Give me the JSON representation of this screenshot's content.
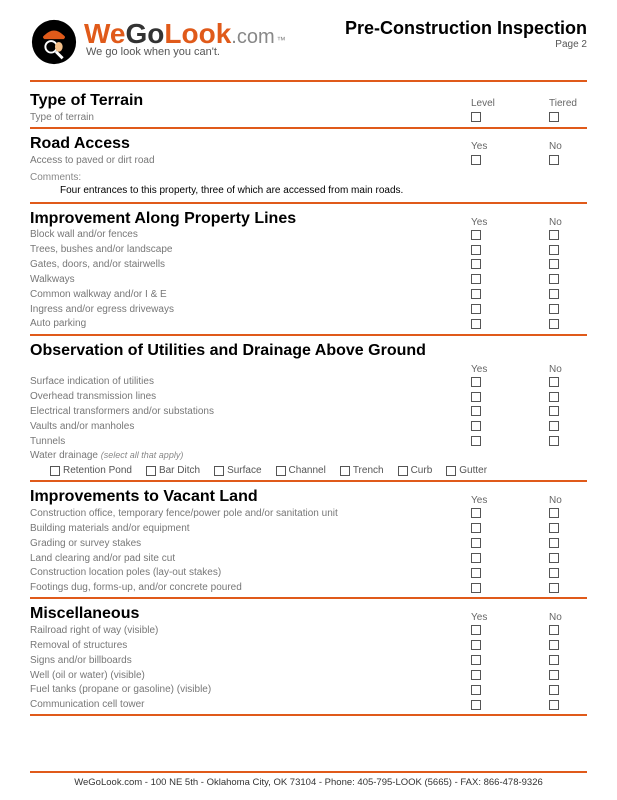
{
  "brand": {
    "we": "We",
    "go": "Go",
    "look": "Look",
    "dom": ".com",
    "tm": "™",
    "tagline": "We go look when you can't."
  },
  "brand_colors": {
    "we": "#e05a1a",
    "go": "#333333",
    "look": "#e05a1a",
    "dom": "#888888"
  },
  "doc": {
    "title": "Pre-Construction Inspection",
    "page": "Page 2"
  },
  "s1": {
    "title": "Type of Terrain",
    "sub": "Type of terrain",
    "h1": "Level",
    "h2": "Tiered"
  },
  "s2": {
    "title": "Road Access",
    "sub": "Access to paved or dirt road",
    "h1": "Yes",
    "h2": "No",
    "comments_lbl": "Comments:",
    "comments": "Four entrances to this property, three of which are accessed from main roads."
  },
  "s3": {
    "title": "Improvement Along Property Lines",
    "h1": "Yes",
    "h2": "No",
    "items": [
      "Block wall and/or fences",
      "Trees, bushes and/or landscape",
      "Gates, doors, and/or stairwells",
      "Walkways",
      "Common walkway and/or I & E",
      "Ingress and/or egress driveways",
      "Auto parking"
    ]
  },
  "s4": {
    "title": "Observation of Utilities and Drainage Above Ground",
    "h1": "Yes",
    "h2": "No",
    "items": [
      "Surface indication of utilities",
      "Overhead transmission lines",
      "Electrical transformers and/or substations",
      "Vaults and/or manholes",
      "Tunnels"
    ],
    "drain_label": "Water drainage ",
    "drain_hint": "(select all that apply)",
    "opts": [
      "Retention Pond",
      "Bar Ditch",
      "Surface",
      "Channel",
      "Trench",
      "Curb",
      "Gutter"
    ]
  },
  "s5": {
    "title": "Improvements to Vacant Land",
    "h1": "Yes",
    "h2": "No",
    "items": [
      "Construction office, temporary fence/power pole and/or sanitation unit",
      "Building materials and/or equipment",
      "Grading or survey stakes",
      "Land clearing and/or pad site cut",
      "Construction location poles (lay-out stakes)",
      "Footings dug, forms-up, and/or concrete poured"
    ]
  },
  "s6": {
    "title": "Miscellaneous",
    "h1": "Yes",
    "h2": "No",
    "items": [
      "Railroad right of way (visible)",
      "Removal of structures",
      "Signs and/or billboards",
      "Well (oil or water)  (visible)",
      "Fuel tanks (propane or gasoline)  (visible)",
      "Communication cell tower"
    ]
  },
  "footer": "WeGoLook.com - 100 NE 5th - Oklahoma City, OK 73104 - Phone: 405-795-LOOK (5665) - FAX: 866-478-9326"
}
